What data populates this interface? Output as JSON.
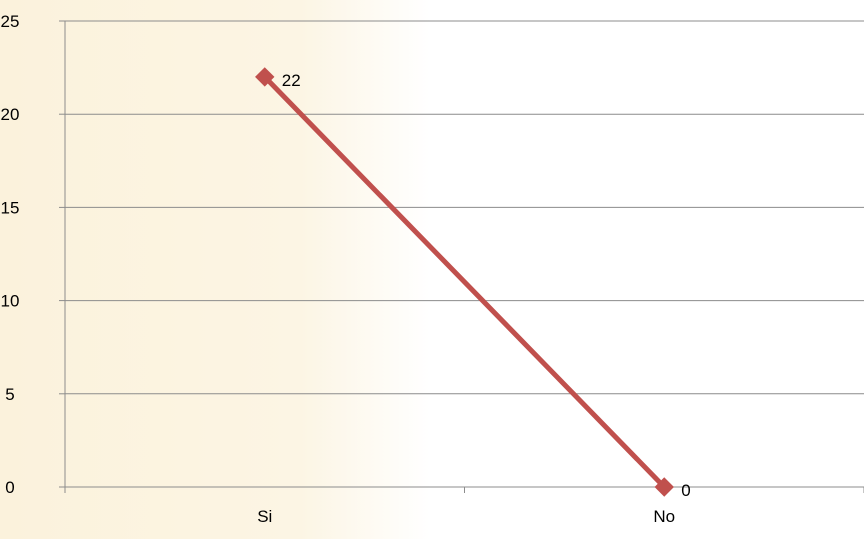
{
  "chart_data": {
    "type": "line",
    "categories": [
      "Si",
      "No"
    ],
    "series": [
      {
        "values": [
          22,
          0
        ],
        "color": "#c0504d",
        "marker": "diamond"
      }
    ],
    "data_labels": [
      "22",
      "0"
    ],
    "ylim": [
      0,
      25
    ],
    "yticks": [
      0,
      5,
      10,
      15,
      20,
      25
    ],
    "ytick_labels": [
      "0",
      "5",
      "10",
      "15",
      "20",
      "25"
    ],
    "grid": true,
    "gridline_color": "#8c8c8c"
  }
}
